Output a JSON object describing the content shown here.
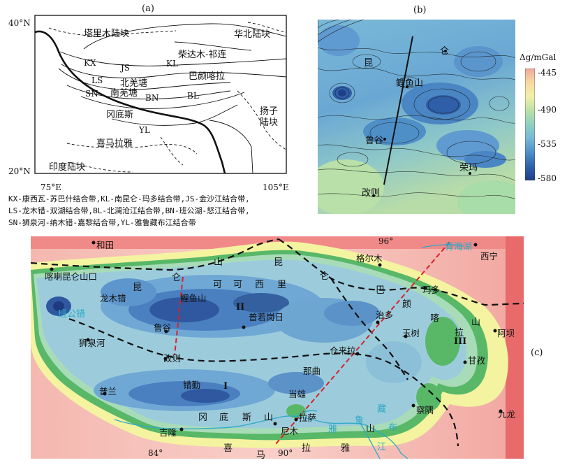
{
  "panel_a": {
    "label": "(a)",
    "lat_top": "40°N",
    "lat_bottom": "20°N",
    "lon_left": "75°E",
    "lon_right": "105°E",
    "blocks": {
      "tarim": "塔里木陆块",
      "north_china": "华北陆块",
      "qaidam": "柴达木-祁连",
      "bayan_har": "巴颜喀拉",
      "north_qiangtang": "北羌塘",
      "south_qiangtang": "南羌塘",
      "gangdese": "冈底斯",
      "himalaya": "喜马拉雅",
      "india": "印度陆块",
      "yangtze_1": "扬子",
      "yangtze_2": "陆块"
    },
    "sutures": {
      "kx": "KX",
      "js": "JS",
      "kl": "KL",
      "ls": "LS",
      "sn": "SN",
      "bn": "BN",
      "bl": "BL",
      "yl": "YL"
    },
    "caption_lines": [
      "KX-康西瓦-苏巴什结合带,KL-南昆仑-玛多结合带,JS-金沙江结合带,",
      "LS-龙木错-双湖结合带,BL-北澜沧江结合带,BN-班公湖-怒江结合带,",
      "SN-狮泉河-纳木错-嘉黎结合带,YL-雅鲁藏布江结合带"
    ]
  },
  "panel_b": {
    "label": "(b)",
    "labels": {
      "kun": "昆",
      "lun": "仑",
      "liyushan": "鲤鱼山",
      "lugu": "鲁谷",
      "gaize": "改则",
      "rongma": "荣玛"
    },
    "colorbar": {
      "title": "Δg/mGal",
      "ticks": [
        "-445",
        "-490",
        "-535",
        "-580"
      ],
      "colors": [
        "#f2a6a0",
        "#f6d8a0",
        "#f2f0a8",
        "#b8e0a8",
        "#8fd0c0",
        "#7ab8d8",
        "#4f8fc8",
        "#2f5fa8",
        "#1f3f88"
      ]
    }
  },
  "panel_c": {
    "label": "(c)",
    "lon_labels": {
      "l84": "84°",
      "l90": "90°",
      "l96": "96°"
    },
    "regions": {
      "r1": "I",
      "r2": "II",
      "r3": "III"
    },
    "cities": {
      "hetian": "和田",
      "xining": "西宁",
      "golmud": "格尔木",
      "kalakunlun": "喀喇昆仑山口",
      "longmuco": "龙木错",
      "liyushan": "鲤鱼山",
      "lugu": "鲁谷",
      "gaize": "改则",
      "shiquanhe": "狮泉河",
      "pulan": "普兰",
      "cuoqin": "错勤",
      "jilong": "吉隆",
      "pulo": "普若岗日",
      "zhiduo": "治多",
      "yushu": "玉树",
      "maduo": "玛多",
      "aba": "阿坝",
      "ganzi": "甘孜",
      "jiulong": "九龙",
      "chaqu": "察隅",
      "cuolai": "仓来拉",
      "naqu": "那曲",
      "dangxiong": "当雄",
      "lasa": "拉萨",
      "nimu": "尼木"
    },
    "range_chars": {
      "kun": "昆",
      "lun": "仑",
      "shan1": "山",
      "kun2": "昆",
      "lun2": "仑",
      "ke1": "可",
      "ke2": "可",
      "xi": "西",
      "li": "里",
      "ba": "巴",
      "yan": "颜",
      "ka": "喀",
      "la": "拉",
      "shan2": "山",
      "gang": "冈",
      "di": "底",
      "si": "斯",
      "shan3": "山",
      "xi2": "喜",
      "ma": "马",
      "la2": "拉",
      "ya": "雅",
      "shan4": "山"
    },
    "water": {
      "qinghai": "青海湖",
      "bangong": "班公错",
      "yalu1": "雅",
      "yalu2": "鲁",
      "yalu3": "藏",
      "yalu4": "布",
      "yalu5": "江"
    }
  },
  "colors": {
    "profile_line": "#d8232a",
    "boundary": "#111111",
    "water": "#2ea9c6"
  }
}
